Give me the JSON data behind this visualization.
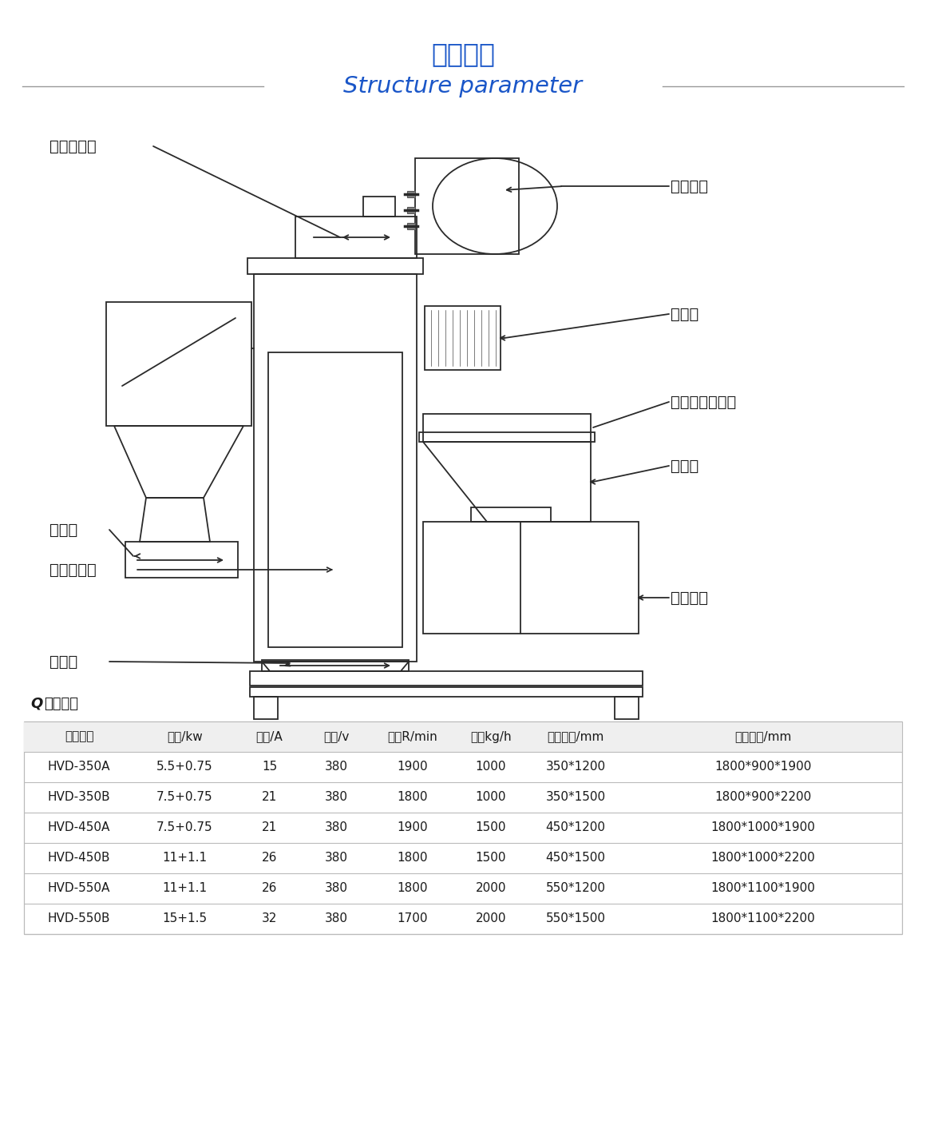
{
  "title_cn": "结构参数",
  "title_en": "Structure parameter",
  "title_color": "#1a56c8",
  "bg_color": "#ffffff",
  "line_color": "#2a2a2a",
  "label_color": "#1a1a1a",
  "table_section_title": "技术参数",
  "table_headers": [
    "产品型号",
    "功率/kw",
    "电流/A",
    "电压/v",
    "转速R/min",
    "产量kg/h",
    "内部尺寸/mm",
    "外形尺寸/mm"
  ],
  "table_rows": [
    [
      "HVD-350A",
      "5.5+0.75",
      "15",
      "380",
      "1900",
      "1000",
      "350*1200",
      "1800*900*1900"
    ],
    [
      "HVD-350B",
      "7.5+0.75",
      "21",
      "380",
      "1800",
      "1000",
      "350*1500",
      "1800*900*2200"
    ],
    [
      "HVD-450A",
      "7.5+0.75",
      "21",
      "380",
      "1900",
      "1500",
      "450*1200",
      "1800*1000*1900"
    ],
    [
      "HVD-450B",
      "11+1.1",
      "26",
      "380",
      "1800",
      "1500",
      "450*1500",
      "1800*1000*2200"
    ],
    [
      "HVD-550A",
      "11+1.1",
      "26",
      "380",
      "1800",
      "2000",
      "550*1200",
      "1800*1100*1900"
    ],
    [
      "HVD-550B",
      "15+1.5",
      "32",
      "380",
      "1700",
      "2000",
      "550*1500",
      "1800*1100*2200"
    ]
  ],
  "labels": {
    "belt_cover": "皮带防护罩",
    "main_motor": "主轴电机",
    "control_box": "电控筱",
    "outlet": "出料口",
    "water_inlet": "进水口（可选）",
    "feed_hopper": "进料斗",
    "feed_motor": "喟料电机",
    "clean_door": "快速清机门",
    "water_outlet": "出水口"
  }
}
